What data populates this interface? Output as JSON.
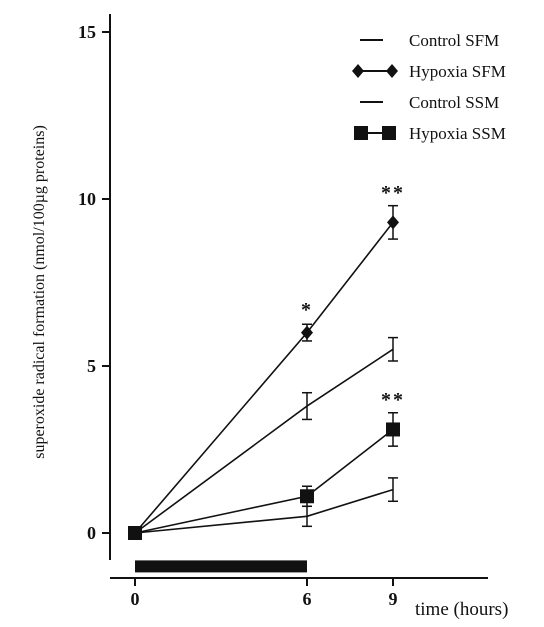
{
  "chart_data": {
    "type": "line",
    "title": "",
    "xlabel": "time (hours)",
    "ylabel": "superoxide radical formation (nmol/100µg proteins)",
    "xlim": [
      0,
      11
    ],
    "ylim": [
      -1.3,
      15.5
    ],
    "x": [
      0,
      6,
      9
    ],
    "xticks": [
      0,
      6,
      9
    ],
    "xtick_labels": [
      "0",
      "6",
      "9"
    ],
    "yticks": [
      0,
      5,
      10,
      15
    ],
    "ytick_labels": [
      "0",
      "5",
      "10",
      "15"
    ],
    "legend_position": "top-right",
    "grid": false,
    "series": [
      {
        "name": "Control SFM",
        "marker": "none",
        "values": [
          0,
          3.8,
          5.5
        ],
        "errors": [
          0,
          0.4,
          0.35
        ]
      },
      {
        "name": "Hypoxia SFM",
        "marker": "diamond",
        "values": [
          0,
          6.0,
          9.3
        ],
        "errors": [
          0,
          0.25,
          0.5
        ]
      },
      {
        "name": "Control SSM",
        "marker": "none",
        "values": [
          0,
          0.5,
          1.3
        ],
        "errors": [
          0,
          0.3,
          0.35
        ]
      },
      {
        "name": "Hypoxia SSM",
        "marker": "square",
        "values": [
          0,
          1.1,
          3.1
        ],
        "errors": [
          0,
          0.3,
          0.5
        ]
      }
    ],
    "annotations": [
      {
        "text": "*",
        "x": 6,
        "y": 6.8
      },
      {
        "text": "**",
        "x": 9,
        "y": 10.3
      },
      {
        "text": "**",
        "x": 9,
        "y": 4.1
      }
    ],
    "hypoxia_bar": {
      "x_start": 0,
      "x_end": 6,
      "y": -1.0
    }
  }
}
